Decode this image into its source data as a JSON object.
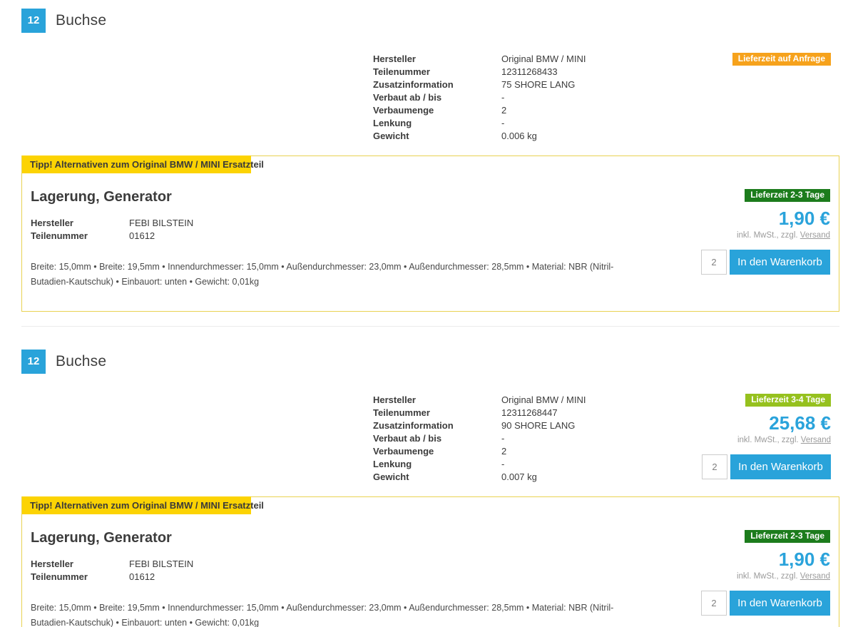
{
  "colors": {
    "accent_blue": "#29a3da",
    "price_blue": "#2aa3db",
    "orange": "#f6a21c",
    "dark_green": "#1c7c1c",
    "light_green": "#96c11e",
    "yellow": "#fcd303"
  },
  "sections": [
    {
      "position_badge": "12",
      "title": "Buchse",
      "delivery_badge": "Lieferzeit auf Anfrage",
      "details": [
        {
          "label": "Hersteller",
          "value": "Original BMW / MINI"
        },
        {
          "label": "Teilenummer",
          "value": "12311268433"
        },
        {
          "label": "Zusatzinformation",
          "value": "75 SHORE LANG"
        },
        {
          "label": "Verbaut ab / bis",
          "value": "-"
        },
        {
          "label": "Verbaumenge",
          "value": "2"
        },
        {
          "label": "Lenkung",
          "value": "-"
        },
        {
          "label": "Gewicht",
          "value": "0.006 kg"
        }
      ],
      "tip": {
        "banner": "Tipp! Alternativen zum Original BMW / MINI Ersatzteil",
        "title": "Lagerung, Generator",
        "delivery_badge": "Lieferzeit 2-3 Tage",
        "price": "1,90 €",
        "tax_note": "inkl. MwSt., zzgl.",
        "shipping_link": "Versand",
        "details": [
          {
            "label": "Hersteller",
            "value": "FEBI BILSTEIN"
          },
          {
            "label": "Teilenummer",
            "value": "01612"
          }
        ],
        "description": "Breite: 15,0mm • Breite: 19,5mm • Innendurchmesser: 15,0mm • Außendurchmesser: 23,0mm • Außendurchmesser: 28,5mm • Material: NBR (Nitril-Butadien-Kautschuk) • Einbauort: unten • Gewicht: 0,01kg",
        "quantity": "2",
        "add_to_cart": "In den Warenkorb"
      }
    },
    {
      "position_badge": "12",
      "title": "Buchse",
      "delivery_badge": "Lieferzeit 3-4 Tage",
      "price": "25,68 €",
      "tax_note": "inkl. MwSt., zzgl.",
      "shipping_link": "Versand",
      "quantity": "2",
      "add_to_cart": "In den Warenkorb",
      "details": [
        {
          "label": "Hersteller",
          "value": "Original BMW / MINI"
        },
        {
          "label": "Teilenummer",
          "value": "12311268447"
        },
        {
          "label": "Zusatzinformation",
          "value": "90 SHORE LANG"
        },
        {
          "label": "Verbaut ab / bis",
          "value": "-"
        },
        {
          "label": "Verbaumenge",
          "value": "2"
        },
        {
          "label": "Lenkung",
          "value": "-"
        },
        {
          "label": "Gewicht",
          "value": "0.007 kg"
        }
      ],
      "tip": {
        "banner": "Tipp! Alternativen zum Original BMW / MINI Ersatzteil",
        "title": "Lagerung, Generator",
        "delivery_badge": "Lieferzeit 2-3 Tage",
        "price": "1,90 €",
        "tax_note": "inkl. MwSt., zzgl.",
        "shipping_link": "Versand",
        "details": [
          {
            "label": "Hersteller",
            "value": "FEBI BILSTEIN"
          },
          {
            "label": "Teilenummer",
            "value": "01612"
          }
        ],
        "description": "Breite: 15,0mm • Breite: 19,5mm • Innendurchmesser: 15,0mm • Außendurchmesser: 23,0mm • Außendurchmesser: 28,5mm • Material: NBR (Nitril-Butadien-Kautschuk) • Einbauort: unten • Gewicht: 0,01kg",
        "quantity": "2",
        "add_to_cart": "In den Warenkorb"
      }
    }
  ]
}
